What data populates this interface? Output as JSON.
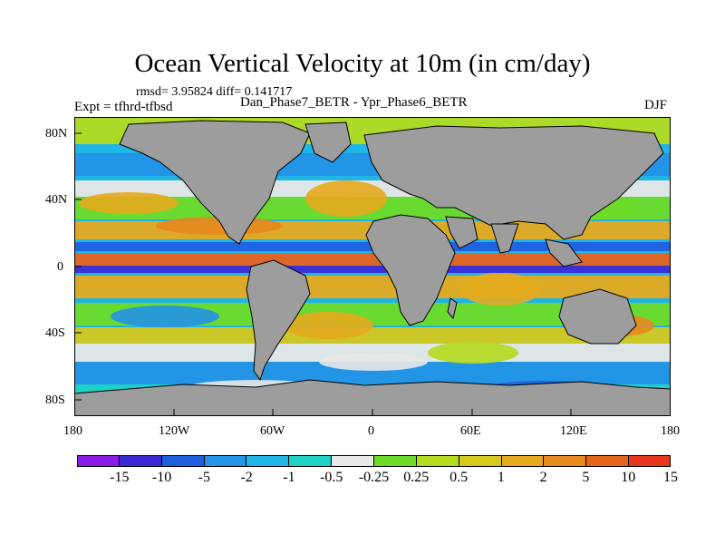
{
  "title": "Ocean Vertical Velocity at 10m (in cm/day)",
  "stats": "rmsd= 3.95824 diff= 0.141717",
  "expt": "Expt = tfhrd-tfbsd",
  "subtitle": "Dan_Phase7_BETR - Ypr_Phase6_BETR",
  "season": "DJF",
  "map": {
    "land_color": "#9d9d9d",
    "y_ticks": [
      "80N",
      "40N",
      "0",
      "40S",
      "80S"
    ],
    "x_ticks": [
      "180",
      "120W",
      "60W",
      "0",
      "60E",
      "120E",
      "180"
    ]
  },
  "colorbar": {
    "colors": [
      "#8a1ee6",
      "#3c2ad6",
      "#1f5fe0",
      "#2394e6",
      "#1fb5e6",
      "#1fd2c8",
      "#e8e8e8",
      "#6edc28",
      "#b4dc1e",
      "#d6c81e",
      "#e6aa1e",
      "#e68a1e",
      "#e6641e",
      "#e6371e"
    ],
    "labels": [
      "-15",
      "-10",
      "-5",
      "-2",
      "-1",
      "-0.5",
      "-0.25",
      "0.25",
      "0.5",
      "1",
      "2",
      "5",
      "10",
      "15"
    ]
  }
}
